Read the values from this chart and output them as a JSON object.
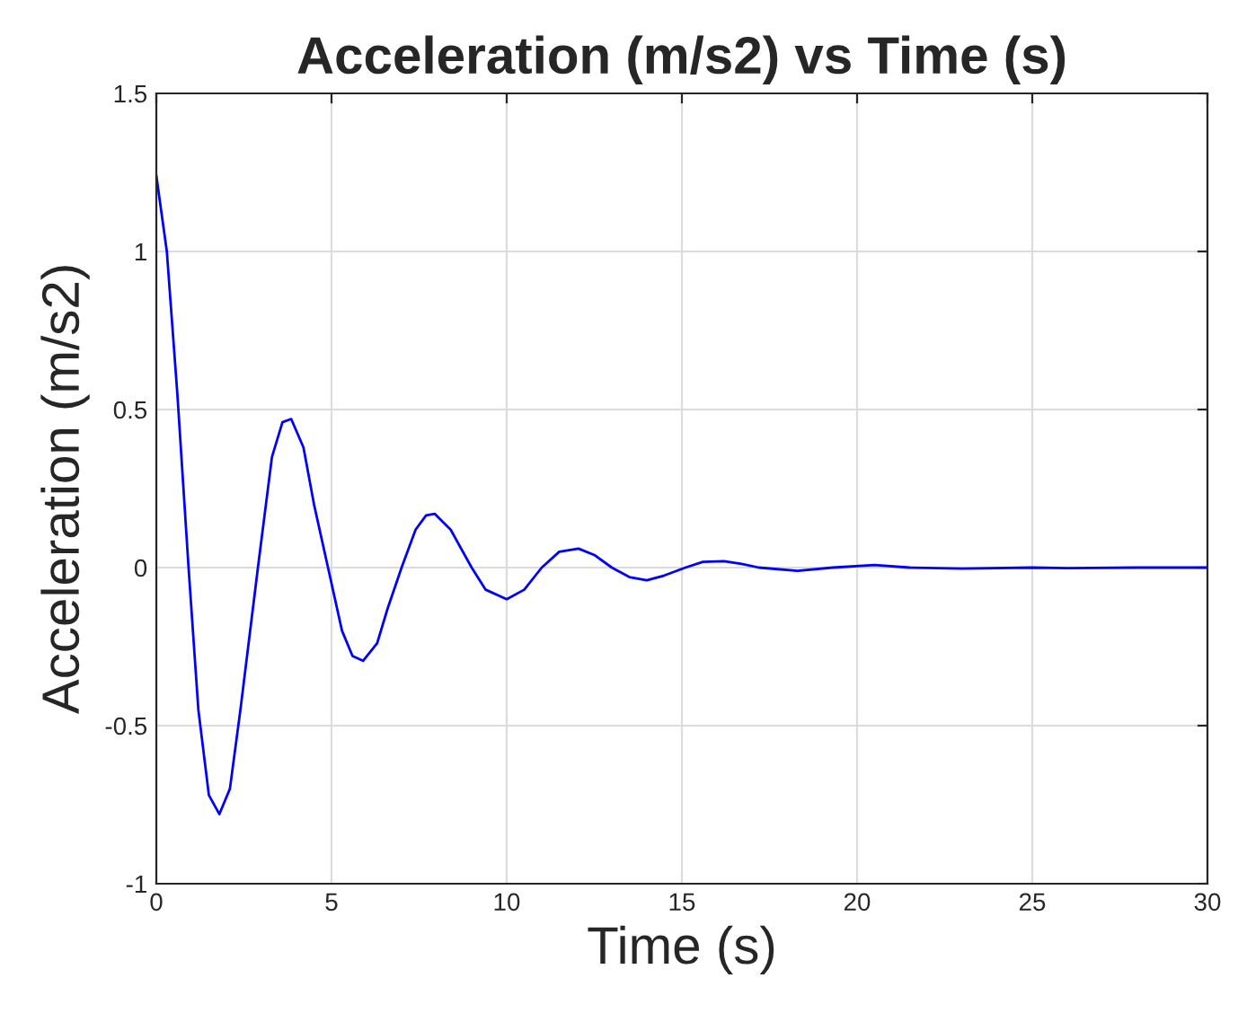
{
  "chart_data": {
    "type": "line",
    "title": "Acceleration (m/s2) vs Time (s)",
    "xlabel": "Time (s)",
    "ylabel": "Acceleration (m/s2)",
    "x": [
      0,
      0.3,
      0.6,
      0.92,
      1.2,
      1.5,
      1.8,
      2.1,
      2.4,
      2.9,
      3.3,
      3.6,
      3.85,
      4.2,
      4.5,
      4.9,
      5.3,
      5.6,
      5.9,
      6.3,
      6.6,
      7.0,
      7.4,
      7.7,
      7.95,
      8.4,
      9.0,
      9.4,
      10.0,
      10.5,
      11.0,
      11.5,
      12.05,
      12.5,
      13.0,
      13.5,
      14.0,
      14.5,
      15.1,
      15.6,
      16.2,
      16.7,
      17.2,
      18.3,
      19.3,
      20.5,
      21.5,
      23,
      25,
      26,
      28,
      30
    ],
    "series": [
      {
        "color": "#0000ff",
        "values": [
          1.24,
          1.0,
          0.55,
          0,
          -0.45,
          -0.72,
          -0.78,
          -0.7,
          -0.45,
          0,
          0.35,
          0.46,
          0.47,
          0.38,
          0.2,
          0,
          -0.2,
          -0.28,
          -0.295,
          -0.24,
          -0.13,
          0,
          0.12,
          0.165,
          0.17,
          0.12,
          0,
          -0.07,
          -0.1,
          -0.07,
          0,
          0.05,
          0.06,
          0.04,
          0,
          -0.03,
          -0.04,
          -0.025,
          0,
          0.018,
          0.02,
          0.012,
          0,
          -0.01,
          0,
          0.008,
          0,
          -0.003,
          0,
          -0.002,
          0,
          0
        ]
      }
    ],
    "xlim": [
      0,
      30
    ],
    "xticks": [
      0,
      5,
      10,
      15,
      20,
      25,
      30
    ],
    "ylim": [
      -1,
      1.5
    ],
    "yticks": [
      -1,
      -0.5,
      0,
      0.5,
      1,
      1.5
    ],
    "grid": true,
    "marker": "none",
    "line_style": "solid"
  }
}
